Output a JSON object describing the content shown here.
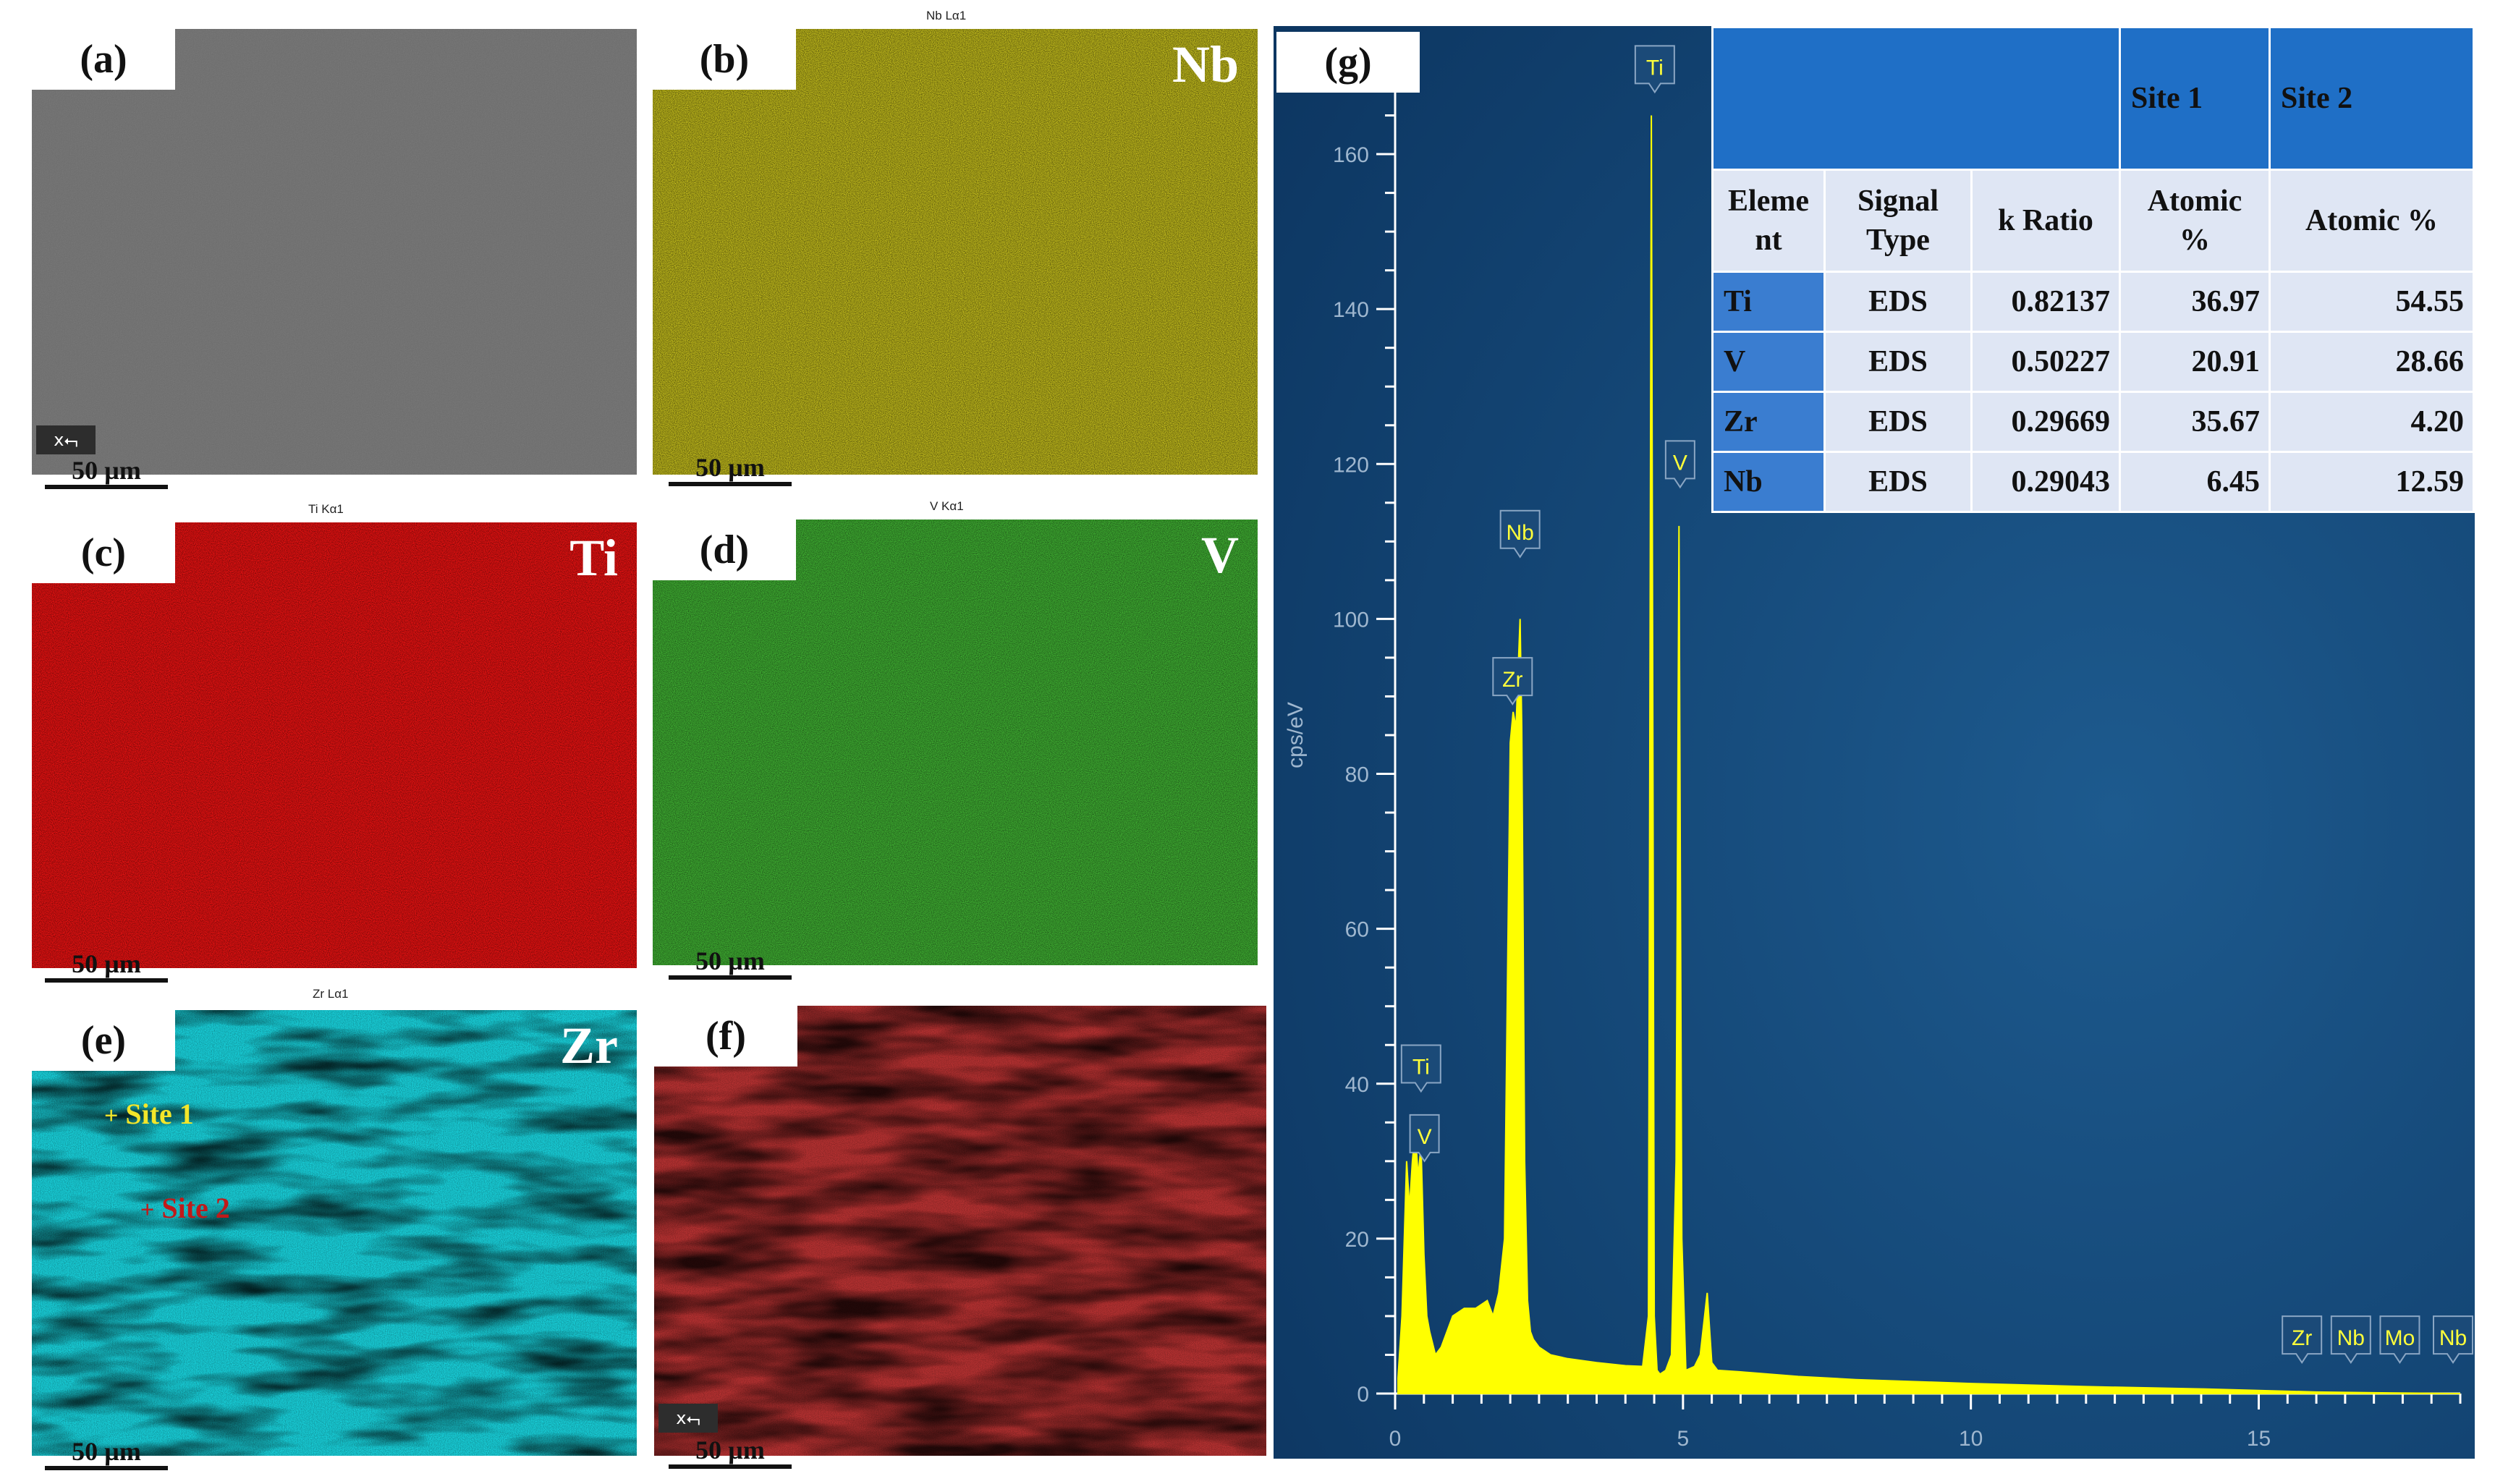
{
  "panels": {
    "a": {
      "label": "(a)",
      "scale": "50 µm",
      "axis": "x"
    },
    "b": {
      "label": "(b)",
      "element": "Nb",
      "title": "Nb Lα1",
      "scale": "50 µm"
    },
    "c": {
      "label": "(c)",
      "element": "Ti",
      "title": "Ti Kα1",
      "scale": "50 µm"
    },
    "d": {
      "label": "(d)",
      "element": "V",
      "title": "V Kα1",
      "scale": "50 µm"
    },
    "e": {
      "label": "(e)",
      "element": "Zr",
      "title": "Zr Lα1",
      "scale": "50 µm",
      "site1": "Site 1",
      "site2": "Site 2"
    },
    "f": {
      "label": "(f)",
      "scale": "50 µm",
      "axis": "x"
    },
    "g": {
      "label": "(g)"
    }
  },
  "colors": {
    "a": "#6e6e6e",
    "b": "#c8c21c",
    "c": "#e01010",
    "d": "#3aa62e",
    "e": "#15c9d6",
    "f": "#b43a3a",
    "chart_bg": "#123f6a",
    "spectrum": "#ffff00",
    "table_header": "#1f6fc6",
    "table_elem": "#3a7dd0",
    "table_cell": "#dfe6f4"
  },
  "table": {
    "top_headers": [
      "",
      "Site 1",
      "Site 2"
    ],
    "headers": [
      "Element",
      "Signal Type",
      "k Ratio",
      "Atomic %",
      "Atomic %"
    ],
    "rows": [
      {
        "element": "Ti",
        "signal": "EDS",
        "k_ratio": "0.82137",
        "site1": "36.97",
        "site2": "54.55"
      },
      {
        "element": "V",
        "signal": "EDS",
        "k_ratio": "0.50227",
        "site1": "20.91",
        "site2": "28.66"
      },
      {
        "element": "Zr",
        "signal": "EDS",
        "k_ratio": "0.29669",
        "site1": "35.67",
        "site2": "4.20"
      },
      {
        "element": "Nb",
        "signal": "EDS",
        "k_ratio": "0.29043",
        "site1": "6.45",
        "site2": "12.59"
      }
    ]
  },
  "chart_data": {
    "type": "line",
    "ylabel": "cps/eV",
    "xlim": [
      0,
      18.5
    ],
    "ylim": [
      0,
      170
    ],
    "x_ticks": [
      0,
      5,
      10,
      15
    ],
    "y_ticks": [
      0,
      20,
      40,
      60,
      80,
      100,
      120,
      140,
      160
    ],
    "series": [
      {
        "x": [
          0.05,
          0.12,
          0.2,
          0.25,
          0.3,
          0.35,
          0.4,
          0.45,
          0.5,
          0.55,
          0.6,
          0.7,
          0.8,
          1.0,
          1.2,
          1.4,
          1.6,
          1.7,
          1.8,
          1.9,
          2.0,
          2.05,
          2.1,
          2.17,
          2.2,
          2.25,
          2.3,
          2.35,
          2.4,
          2.5,
          2.7,
          3.0,
          3.5,
          4.0,
          4.3,
          4.4,
          4.45,
          4.5,
          4.55,
          4.6,
          4.7,
          4.8,
          4.88,
          4.93,
          4.98,
          5.05,
          5.2,
          5.3,
          5.42,
          5.5,
          5.6,
          6.0,
          7.0,
          8.0,
          10.0,
          12.0,
          14.0,
          15.0,
          16.0,
          17.0,
          18.5
        ],
        "y": [
          2,
          10,
          30,
          24,
          30,
          34,
          28,
          32,
          18,
          10,
          8,
          5,
          6,
          10,
          11,
          11,
          12,
          10,
          13,
          20,
          84,
          88,
          86,
          100,
          86,
          30,
          12,
          8,
          7,
          6,
          5,
          4.5,
          4,
          3.6,
          3.5,
          10,
          165,
          10,
          3,
          2.5,
          3,
          5,
          30,
          112,
          20,
          3,
          3.5,
          5,
          13,
          4,
          3,
          2.8,
          2.2,
          1.8,
          1.3,
          0.9,
          0.6,
          0.4,
          0.2,
          0.1,
          0
        ]
      }
    ],
    "peak_labels": [
      {
        "label": "Ti",
        "x": 4.51,
        "y": 168
      },
      {
        "label": "V",
        "x": 4.95,
        "y": 117
      },
      {
        "label": "Nb",
        "x": 2.17,
        "y": 108
      },
      {
        "label": "Zr",
        "x": 2.04,
        "y": 89
      },
      {
        "label": "Ti",
        "x": 0.45,
        "y": 39
      },
      {
        "label": "V",
        "x": 0.51,
        "y": 30
      },
      {
        "label": "Zr",
        "x": 15.75,
        "y": 4
      },
      {
        "label": "Nb",
        "x": 16.6,
        "y": 4
      },
      {
        "label": "Mo",
        "x": 17.45,
        "y": 4
      },
      {
        "label": "Nb",
        "x": 18.6,
        "y": 4
      }
    ]
  }
}
